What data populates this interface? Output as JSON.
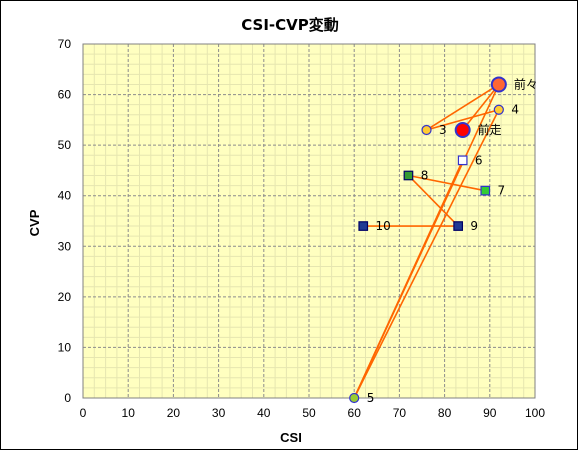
{
  "chart_data": {
    "type": "scatter",
    "title": "CSI-CVP変動",
    "xlabel": "CSI",
    "ylabel": "CVP",
    "xlim": [
      0,
      100
    ],
    "ylim": [
      0,
      70
    ],
    "x_ticks": [
      "0",
      "10",
      "20",
      "30",
      "40",
      "50",
      "60",
      "70",
      "80",
      "90",
      "100"
    ],
    "y_ticks": [
      "0",
      "10",
      "20",
      "30",
      "40",
      "50",
      "60",
      "70"
    ],
    "grid": true,
    "plot_background": "#ffffc0",
    "line_color": "#ff6600",
    "points": [
      {
        "label": "前々",
        "x": 92,
        "y": 62,
        "shape": "circle",
        "fill": "#ff6633",
        "stroke": "#3333cc",
        "size": "large"
      },
      {
        "label": "前走",
        "x": 84,
        "y": 53,
        "shape": "circle",
        "fill": "#ff0000",
        "stroke": "#3333cc",
        "size": "large"
      },
      {
        "label": "3",
        "x": 76,
        "y": 53,
        "shape": "circle",
        "fill": "#ffcc33",
        "stroke": "#3333cc",
        "size": "small"
      },
      {
        "label": "4",
        "x": 92,
        "y": 57,
        "shape": "circle",
        "fill": "#ffcc33",
        "stroke": "#3333cc",
        "size": "small"
      },
      {
        "label": "5",
        "x": 60,
        "y": 0,
        "shape": "circle",
        "fill": "#99cc33",
        "stroke": "#3333cc",
        "size": "small"
      },
      {
        "label": "6",
        "x": 84,
        "y": 47,
        "shape": "square",
        "fill": "#ffffff",
        "stroke": "#3333cc",
        "size": "small"
      },
      {
        "label": "7",
        "x": 89,
        "y": 41,
        "shape": "square",
        "fill": "#33cc33",
        "stroke": "#3333cc",
        "size": "small"
      },
      {
        "label": "8",
        "x": 72,
        "y": 44,
        "shape": "square",
        "fill": "#339933",
        "stroke": "#000066",
        "size": "small"
      },
      {
        "label": "9",
        "x": 83,
        "y": 34,
        "shape": "square",
        "fill": "#1f3a93",
        "stroke": "#000066",
        "size": "small"
      },
      {
        "label": "10",
        "x": 62,
        "y": 34,
        "shape": "square",
        "fill": "#1f3a93",
        "stroke": "#000066",
        "size": "small"
      }
    ],
    "connections": [
      [
        "前走",
        "前々"
      ],
      [
        "前々",
        "3"
      ],
      [
        "3",
        "4"
      ],
      [
        "4",
        "5"
      ],
      [
        "5",
        "前々"
      ],
      [
        "5",
        "6"
      ],
      [
        "8",
        "7"
      ],
      [
        "8",
        "9"
      ],
      [
        "9",
        "10"
      ]
    ]
  }
}
